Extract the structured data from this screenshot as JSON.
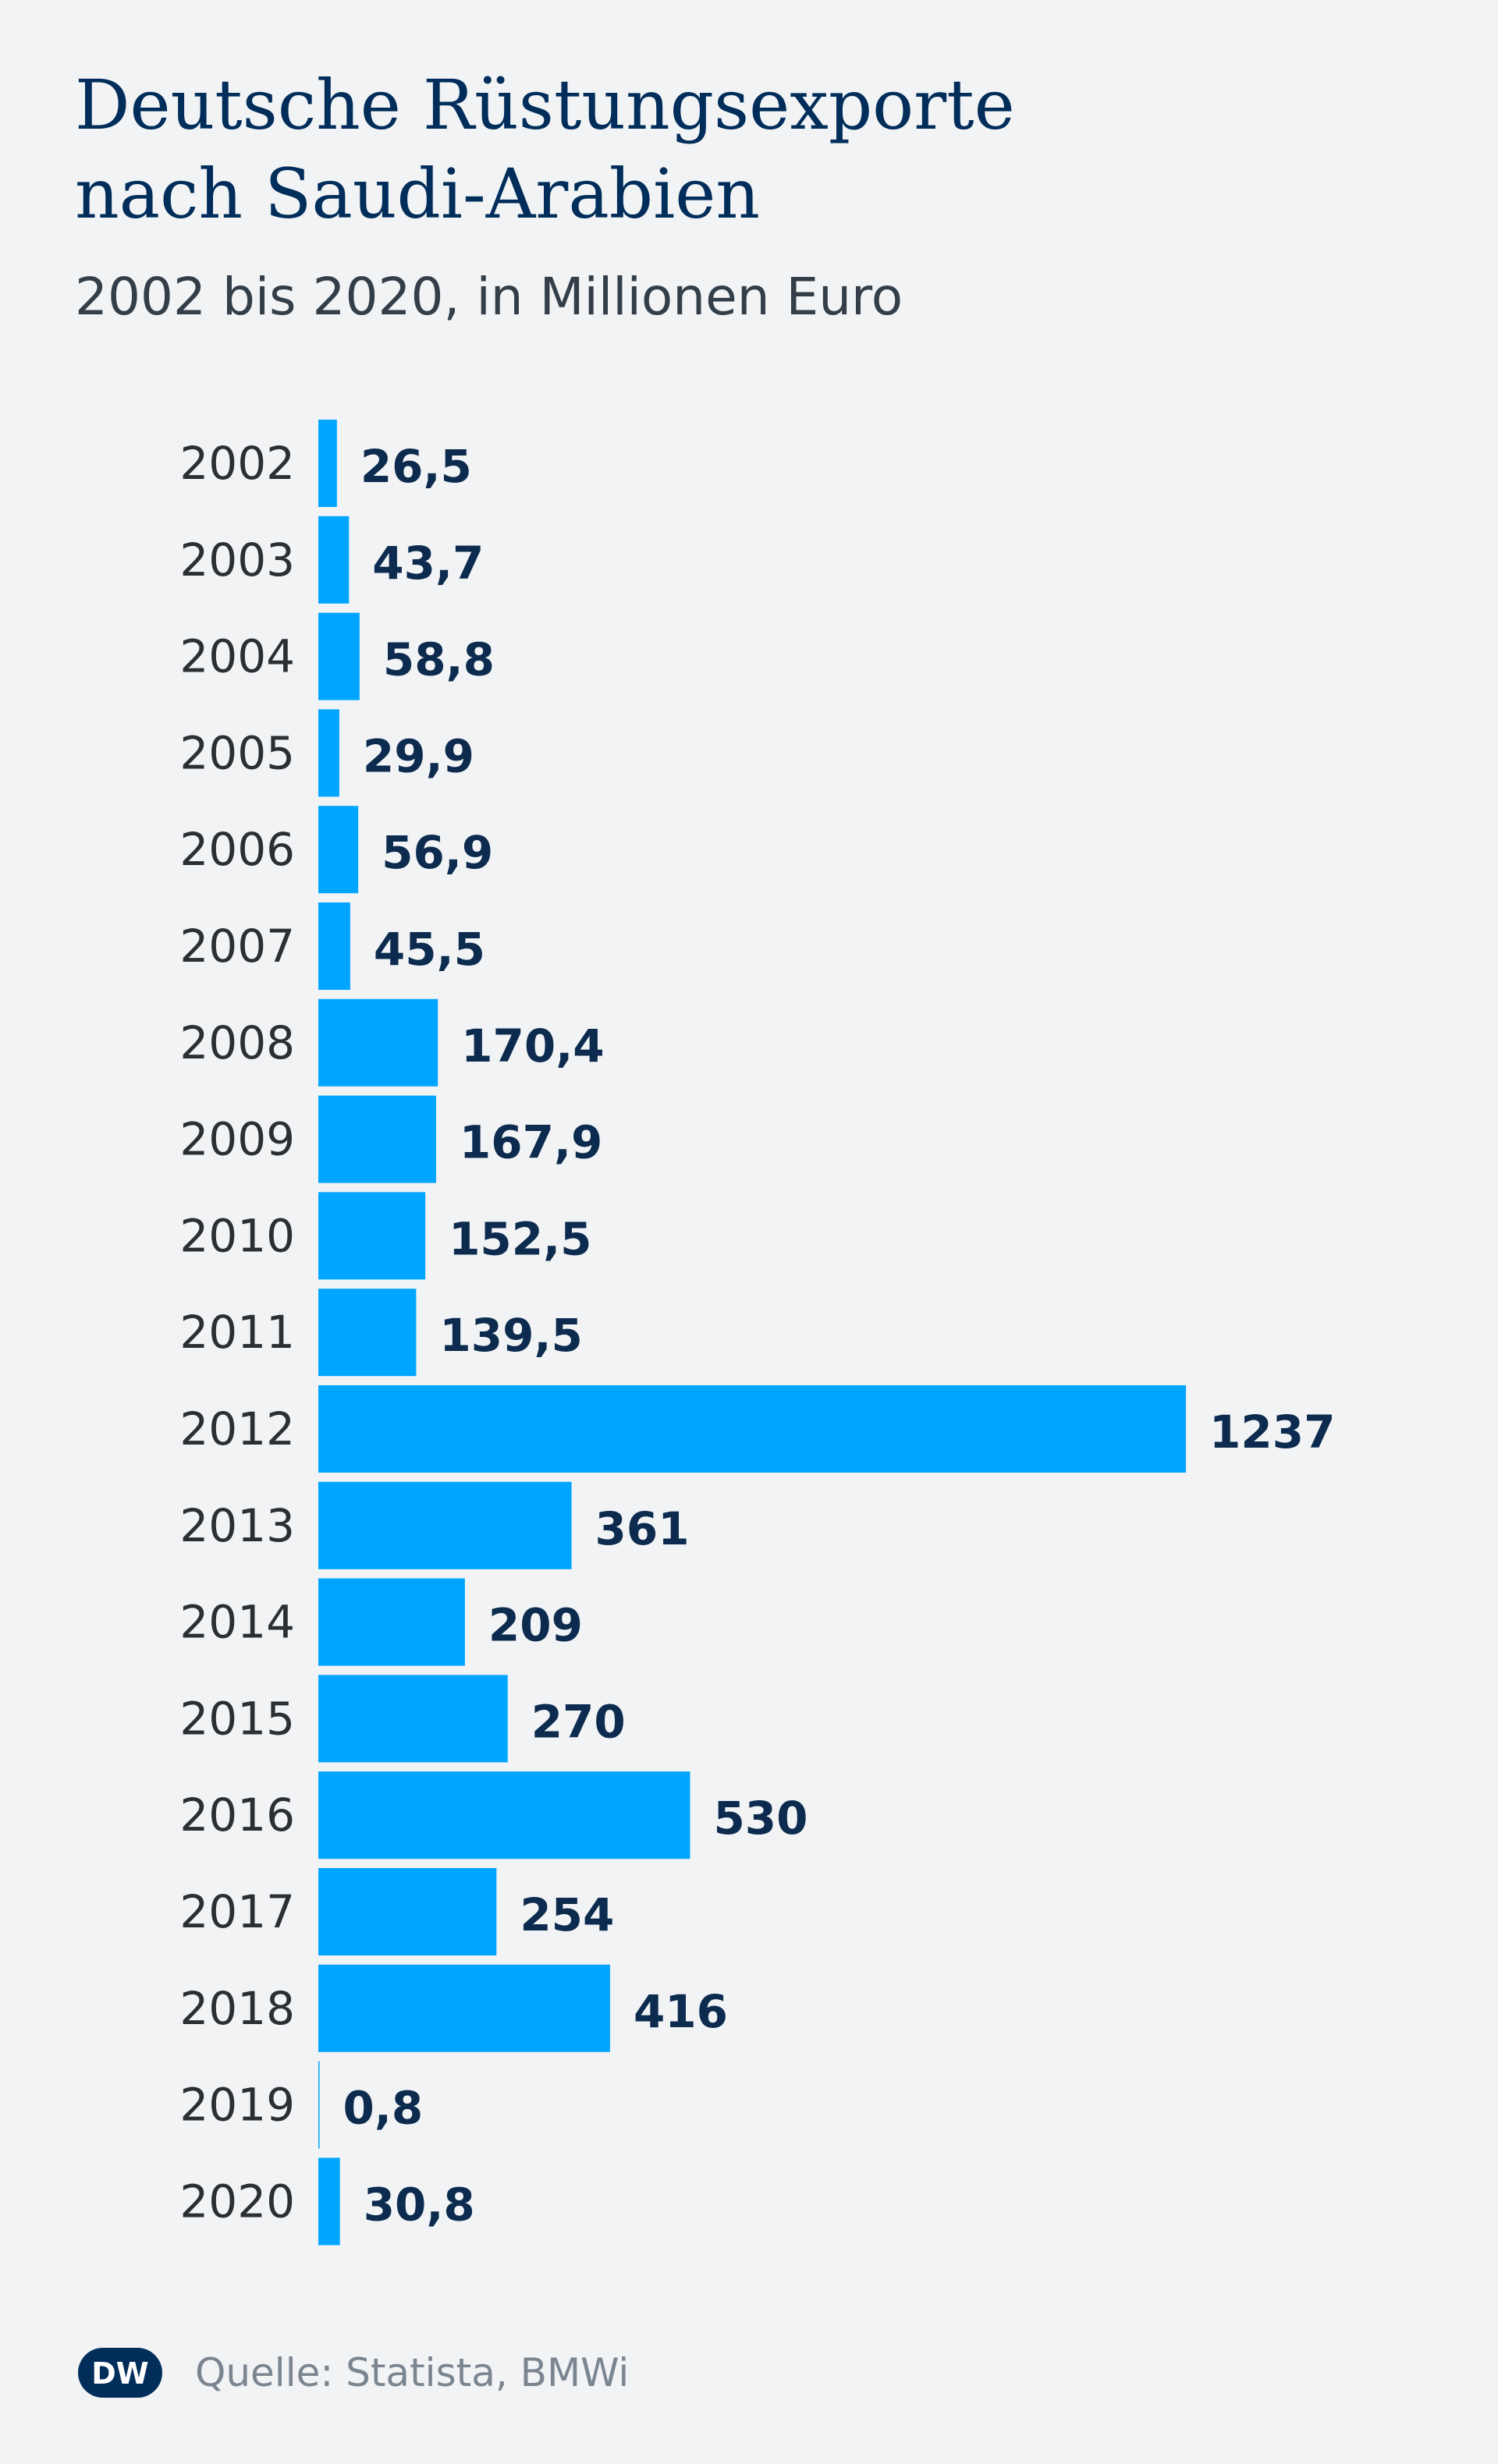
{
  "title_line1": "Deutsche Rüstungsexporte",
  "title_line2": "nach Saudi-Arabien",
  "subtitle": "2002 bis 2020, in Millionen Euro",
  "source": "Quelle: Statista, BMWi",
  "logo_text": "DW",
  "colors": {
    "bar": "#00a5ff",
    "title": "#002d5a",
    "value": "#0c2b4e",
    "background": "#f1f3f5"
  },
  "chart_data": {
    "type": "bar",
    "orientation": "horizontal",
    "title": "Deutsche Rüstungsexporte nach Saudi-Arabien",
    "subtitle": "2002 bis 2020, in Millionen Euro",
    "categories": [
      "2002",
      "2003",
      "2004",
      "2005",
      "2006",
      "2007",
      "2008",
      "2009",
      "2010",
      "2011",
      "2012",
      "2013",
      "2014",
      "2015",
      "2016",
      "2017",
      "2018",
      "2019",
      "2020"
    ],
    "values": [
      26.5,
      43.7,
      58.8,
      29.9,
      56.9,
      45.5,
      170.4,
      167.9,
      152.5,
      139.5,
      1237,
      361,
      209,
      270,
      530,
      254,
      416,
      0.8,
      30.8
    ],
    "value_labels": [
      "26,5",
      "43,7",
      "58,8",
      "29,9",
      "56,9",
      "45,5",
      "170,4",
      "167,9",
      "152,5",
      "139,5",
      "1237",
      "361",
      "209",
      "270",
      "530",
      "254",
      "416",
      "0,8",
      "30,8"
    ],
    "xlim": [
      0,
      1237
    ],
    "grid": false,
    "legend": "none",
    "data_labels": "outside-end"
  }
}
